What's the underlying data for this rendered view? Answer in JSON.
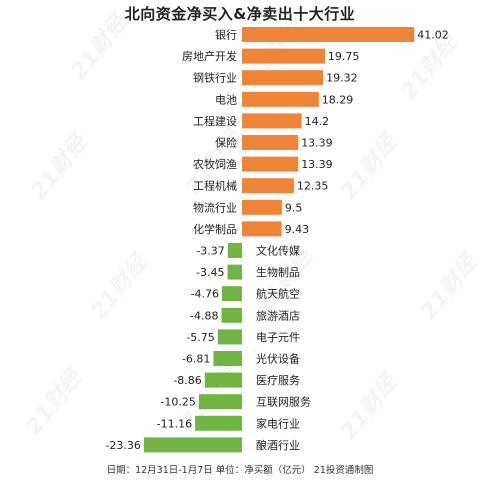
{
  "title": "北向资金净买入&净卖出十大行业",
  "footer": "日期：12月31日-1月7日  单位：净买额（亿元） 21投资通制图",
  "watermark": "21财经",
  "colors": {
    "positive": "#EE8438",
    "negative": "#71B444",
    "text": "#222222"
  },
  "chart_data": {
    "type": "bar",
    "orientation": "horizontal",
    "title": "北向资金净买入&净卖出十大行业",
    "categories": [
      "银行",
      "房地产开发",
      "钢铁行业",
      "电池",
      "工程建设",
      "保险",
      "农牧饲渔",
      "工程机械",
      "物流行业",
      "化学制品",
      "文化传媒",
      "生物制品",
      "航天航空",
      "旅游酒店",
      "电子元件",
      "光伏设备",
      "医疗服务",
      "互联网服务",
      "家电行业",
      "酿酒行业"
    ],
    "values": [
      41.02,
      19.75,
      19.32,
      18.29,
      14.2,
      13.39,
      13.39,
      12.35,
      9.5,
      9.43,
      -3.37,
      -3.45,
      -4.76,
      -4.88,
      -5.75,
      -6.81,
      -8.86,
      -10.25,
      -11.16,
      -23.36
    ],
    "value_labels": [
      "41.02",
      "19.75",
      "19.32",
      "18.29",
      "14.2",
      "13.39",
      "13.39",
      "12.35",
      "9.5",
      "9.43",
      "-3.37",
      "-3.45",
      "-4.76",
      "-4.88",
      "-5.75",
      "-6.81",
      "-8.86",
      "-10.25",
      "-11.16",
      "-23.36"
    ],
    "xlim": [
      -23.36,
      41.02
    ],
    "grid": false,
    "legend": "none"
  }
}
